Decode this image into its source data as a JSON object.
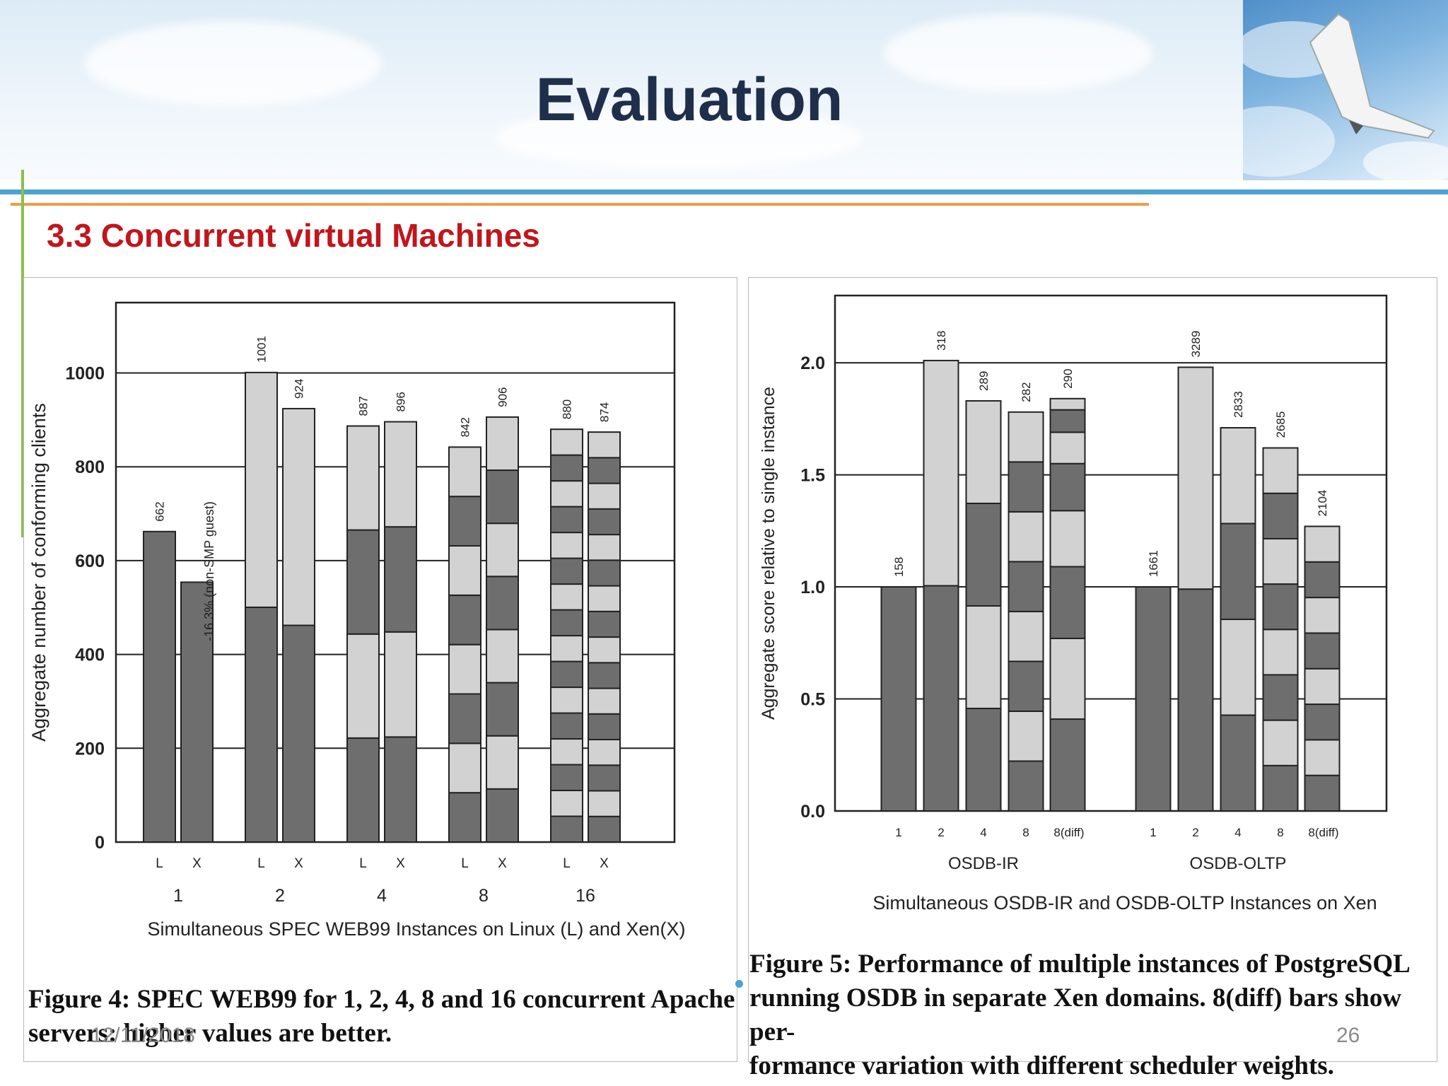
{
  "slide": {
    "title": "Evaluation",
    "subtitle": "3.3 Concurrent virtual Machines",
    "date": "12/11/2018",
    "page_number": "26"
  },
  "figure4": {
    "caption_line1": "Figure 4: SPEC WEB99 for 1, 2, 4, 8 and 16 concurrent Apache",
    "caption_line2": "servers: higher values are better."
  },
  "figure5": {
    "caption_line1": "Figure 5:  Performance of multiple instances of PostgreSQL",
    "caption_line2": "running OSDB in separate Xen domains. 8(diff) bars show per-",
    "caption_line3": "formance variation with different scheduler weights."
  },
  "chart_data": [
    {
      "type": "bar",
      "stacked": true,
      "xlabel": "Simultaneous SPEC WEB99 Instances on Linux (L) and Xen(X)",
      "ylabel": "Aggregate number of conforming clients",
      "ylim": [
        0,
        1150
      ],
      "yticks": [
        0,
        200,
        400,
        600,
        800,
        1000
      ],
      "groups": [
        "1",
        "2",
        "4",
        "8",
        "16"
      ],
      "bar_labels": [
        "L",
        "X"
      ],
      "annotation": "-16.3% (non-SMP guest)",
      "colors": {
        "dark": "#6e6e6e",
        "light": "#d2d2d2"
      },
      "bars": [
        {
          "group": "1",
          "label": "L",
          "total": 662,
          "segments": 1,
          "value_label": "662"
        },
        {
          "group": "1",
          "label": "X",
          "total": 554,
          "segments": 1,
          "value_label": ""
        },
        {
          "group": "2",
          "label": "L",
          "total": 1001,
          "segments": 2,
          "value_label": "1001"
        },
        {
          "group": "2",
          "label": "X",
          "total": 924,
          "segments": 2,
          "value_label": "924"
        },
        {
          "group": "4",
          "label": "L",
          "total": 887,
          "segments": 4,
          "value_label": "887"
        },
        {
          "group": "4",
          "label": "X",
          "total": 896,
          "segments": 4,
          "value_label": "896"
        },
        {
          "group": "8",
          "label": "L",
          "total": 842,
          "segments": 8,
          "value_label": "842"
        },
        {
          "group": "8",
          "label": "X",
          "total": 906,
          "segments": 8,
          "value_label": "906"
        },
        {
          "group": "16",
          "label": "L",
          "total": 880,
          "segments": 16,
          "value_label": "880"
        },
        {
          "group": "16",
          "label": "X",
          "total": 874,
          "segments": 16,
          "value_label": "874"
        }
      ]
    },
    {
      "type": "bar",
      "stacked": true,
      "xlabel": "Simultaneous OSDB-IR and OSDB-OLTP Instances on Xen",
      "ylabel": "Aggregate score relative to single instance",
      "ylim": [
        0,
        2.3
      ],
      "yticks": [
        0.0,
        0.5,
        1.0,
        1.5,
        2.0
      ],
      "ytick_labels": [
        "0.0",
        "0.5",
        "1.0",
        "1.5",
        "2.0"
      ],
      "groups": [
        "OSDB-IR",
        "OSDB-OLTP"
      ],
      "colors": {
        "dark": "#6e6e6e",
        "light": "#d2d2d2"
      },
      "bars": [
        {
          "group": "OSDB-IR",
          "label": "1",
          "total": 1.0,
          "segments": 1,
          "value_label": "158"
        },
        {
          "group": "OSDB-IR",
          "label": "2",
          "total": 2.01,
          "segments": 2,
          "value_label": "318"
        },
        {
          "group": "OSDB-IR",
          "label": "4",
          "total": 1.83,
          "segments": 4,
          "value_label": "289"
        },
        {
          "group": "OSDB-IR",
          "label": "8",
          "total": 1.78,
          "segments": 8,
          "value_label": "282"
        },
        {
          "group": "OSDB-IR",
          "label": "8(diff)",
          "total": 1.84,
          "segments": [
            0.41,
            0.36,
            0.32,
            0.25,
            0.21,
            0.14,
            0.1,
            0.05
          ],
          "value_label": "290"
        },
        {
          "group": "OSDB-OLTP",
          "label": "1",
          "total": 1.0,
          "segments": 1,
          "value_label": "1661"
        },
        {
          "group": "OSDB-OLTP",
          "label": "2",
          "total": 1.98,
          "segments": 2,
          "value_label": "3289"
        },
        {
          "group": "OSDB-OLTP",
          "label": "4",
          "total": 1.71,
          "segments": 4,
          "value_label": "2833"
        },
        {
          "group": "OSDB-OLTP",
          "label": "8",
          "total": 1.62,
          "segments": 8,
          "value_label": "2685"
        },
        {
          "group": "OSDB-OLTP",
          "label": "8(diff)",
          "total": 1.27,
          "segments": 8,
          "value_label": "2104"
        }
      ]
    }
  ]
}
